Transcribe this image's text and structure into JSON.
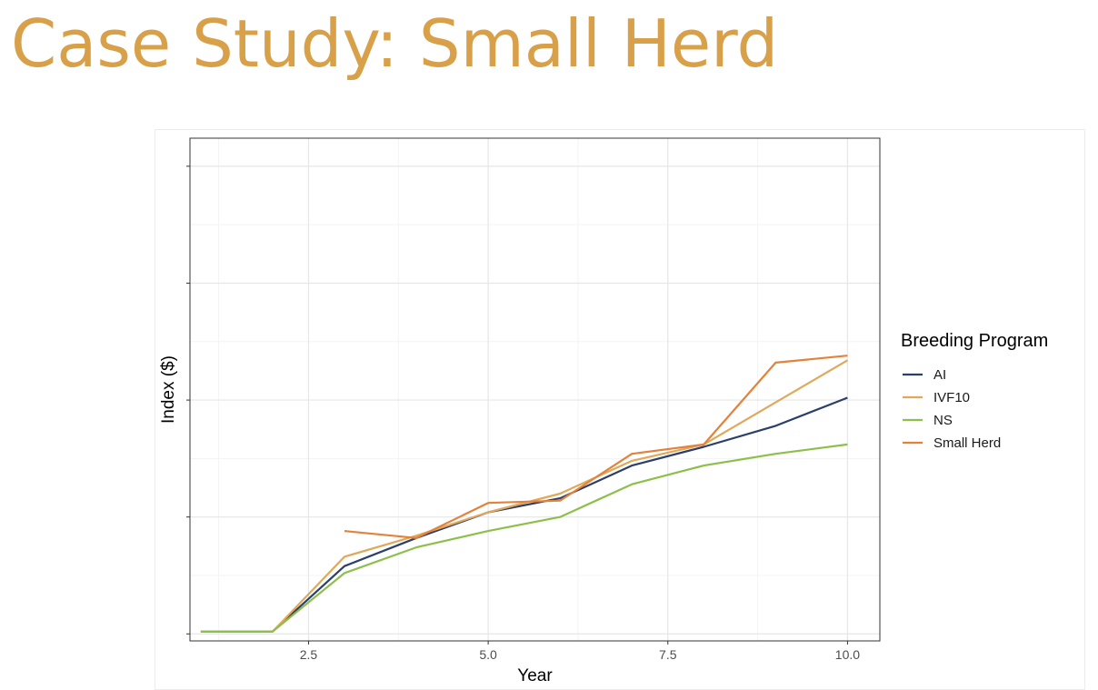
{
  "slide": {
    "title": "Case Study: Small Herd"
  },
  "chart_data": {
    "type": "line",
    "title": "",
    "xlabel": "Year",
    "ylabel": "Index ($)",
    "xlim": [
      0.85,
      10.45
    ],
    "ylim": [
      -0.15,
      10.6
    ],
    "xticks": [
      2.5,
      5.0,
      7.5,
      10.0
    ],
    "xtick_labels": [
      "2.5",
      "5.0",
      "7.5",
      "10.0"
    ],
    "yticks": [
      0,
      2.5,
      5,
      7.5,
      10
    ],
    "ytick_labels": [
      "",
      "",
      "",
      "",
      ""
    ],
    "grid": true,
    "legend": {
      "title": "Breeding Program",
      "position": "right"
    },
    "series": [
      {
        "name": "AI",
        "color": "#2B3F6B",
        "x": [
          1,
          2,
          3,
          4,
          5,
          6,
          7,
          8,
          9,
          10
        ],
        "y": [
          0.05,
          0.05,
          1.45,
          2.05,
          2.6,
          2.9,
          3.6,
          4.0,
          4.45,
          5.05
        ]
      },
      {
        "name": "IVF10",
        "color": "#E0A85A",
        "x": [
          1,
          2,
          3,
          4,
          5,
          6,
          7,
          8,
          9,
          10
        ],
        "y": [
          0.05,
          0.05,
          1.65,
          2.1,
          2.6,
          3.0,
          3.7,
          4.05,
          4.95,
          5.85
        ]
      },
      {
        "name": "NS",
        "color": "#8DBF4A",
        "x": [
          1,
          2,
          3,
          4,
          5,
          6,
          7,
          8,
          9,
          10
        ],
        "y": [
          0.05,
          0.05,
          1.3,
          1.85,
          2.2,
          2.5,
          3.2,
          3.6,
          3.85,
          4.05
        ]
      },
      {
        "name": "Small Herd",
        "color": "#E3823B",
        "x": [
          3,
          4,
          5,
          6,
          7,
          8,
          9,
          10
        ],
        "y": [
          2.2,
          2.05,
          2.8,
          2.85,
          3.85,
          4.05,
          5.8,
          5.95
        ]
      }
    ]
  }
}
